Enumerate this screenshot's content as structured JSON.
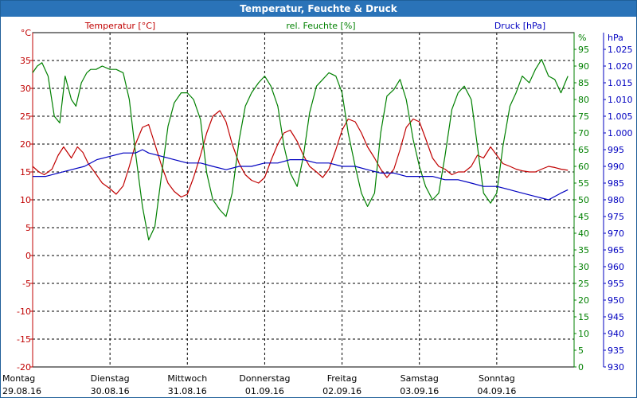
{
  "window": {
    "title": "Temperatur, Feuchte & Druck"
  },
  "colors": {
    "temperature": "#c00000",
    "humidity": "#008000",
    "pressure": "#0000c0",
    "title_bar": "#2a73b8"
  },
  "chart_data": {
    "type": "line",
    "title": "Temperatur, Feuchte & Druck",
    "grid": true,
    "x_labels": [
      {
        "day": "Montag",
        "date": "29.08.16"
      },
      {
        "day": "Dienstag",
        "date": "30.08.16"
      },
      {
        "day": "Mittwoch",
        "date": "31.08.16"
      },
      {
        "day": "Donnerstag",
        "date": "01.09.16"
      },
      {
        "day": "Freitag",
        "date": "02.09.16"
      },
      {
        "day": "Samstag",
        "date": "03.09.16"
      },
      {
        "day": "Sonntag",
        "date": "04.09.16"
      }
    ],
    "x_range_days": [
      0,
      7
    ],
    "axes": {
      "temperature": {
        "label": "Temperatur [°C]",
        "unit": "°C",
        "range": [
          -20,
          40
        ],
        "ticks": [
          "35",
          "30",
          "25",
          "20",
          "15",
          "10",
          "5",
          "0",
          "-5",
          "-10",
          "-15",
          "-20"
        ]
      },
      "humidity": {
        "label": "rel. Feuchte [%]",
        "unit": "%",
        "range": [
          0,
          100
        ],
        "ticks": [
          "95",
          "90",
          "85",
          "80",
          "75",
          "70",
          "65",
          "60",
          "55",
          "50",
          "45",
          "40",
          "35",
          "30",
          "25",
          "20",
          "15",
          "10",
          "5",
          "0"
        ]
      },
      "pressure": {
        "label": "Druck [hPa]",
        "unit": "hPa",
        "range": [
          930,
          1030
        ],
        "ticks": [
          "1.025",
          "1.020",
          "1.015",
          "1.010",
          "1.005",
          "1.000",
          "995",
          "990",
          "985",
          "980",
          "975",
          "970",
          "965",
          "960",
          "955",
          "950",
          "945",
          "940",
          "935",
          "930"
        ]
      }
    },
    "series": [
      {
        "name": "Temperatur [°C]",
        "axis": "temperature",
        "x": [
          0,
          0.08,
          0.15,
          0.25,
          0.33,
          0.4,
          0.5,
          0.58,
          0.65,
          0.72,
          0.8,
          0.9,
          1.0,
          1.08,
          1.17,
          1.25,
          1.33,
          1.42,
          1.5,
          1.58,
          1.67,
          1.75,
          1.83,
          1.92,
          2.0,
          2.08,
          2.17,
          2.25,
          2.33,
          2.42,
          2.5,
          2.58,
          2.67,
          2.75,
          2.83,
          2.92,
          3.0,
          3.08,
          3.17,
          3.25,
          3.33,
          3.42,
          3.5,
          3.58,
          3.67,
          3.75,
          3.83,
          3.92,
          4.0,
          4.08,
          4.17,
          4.25,
          4.33,
          4.42,
          4.5,
          4.58,
          4.67,
          4.75,
          4.83,
          4.92,
          5.0,
          5.08,
          5.17,
          5.25,
          5.33,
          5.42,
          5.5,
          5.58,
          5.67,
          5.75,
          5.83,
          5.92,
          6.0,
          6.08,
          6.17,
          6.25,
          6.33,
          6.42,
          6.5,
          6.58,
          6.67,
          6.75,
          6.83,
          6.92
        ],
        "values": [
          16.0,
          15.0,
          14.5,
          15.5,
          18.0,
          19.5,
          17.5,
          19.5,
          18.5,
          16.5,
          15.0,
          13.0,
          12.0,
          11.0,
          12.5,
          16.0,
          20.0,
          23.0,
          23.5,
          20.0,
          16.0,
          13.0,
          11.5,
          10.5,
          11.0,
          14.0,
          18.0,
          22.0,
          25.0,
          26.0,
          24.0,
          20.0,
          16.5,
          14.5,
          13.5,
          13.0,
          14.0,
          17.0,
          20.0,
          22.0,
          22.5,
          20.5,
          18.0,
          16.0,
          15.0,
          14.0,
          15.5,
          19.0,
          22.5,
          24.5,
          24.0,
          22.0,
          19.5,
          17.5,
          15.5,
          14.0,
          15.5,
          19.0,
          23.0,
          24.5,
          24.0,
          21.0,
          17.5,
          16.0,
          15.5,
          14.5,
          15.0,
          15.0,
          16.0,
          18.0,
          17.5,
          19.5,
          18.0,
          16.5,
          16.0,
          15.5,
          15.2,
          15.0,
          15.0,
          15.5,
          16.0,
          15.8,
          15.5,
          15.3
        ]
      },
      {
        "name": "rel. Feuchte [%]",
        "axis": "humidity",
        "x": [
          0,
          0.06,
          0.12,
          0.2,
          0.28,
          0.35,
          0.42,
          0.5,
          0.56,
          0.63,
          0.7,
          0.75,
          0.82,
          0.9,
          1.0,
          1.08,
          1.17,
          1.25,
          1.33,
          1.42,
          1.5,
          1.58,
          1.67,
          1.75,
          1.83,
          1.92,
          2.0,
          2.08,
          2.17,
          2.25,
          2.33,
          2.42,
          2.5,
          2.58,
          2.67,
          2.75,
          2.83,
          2.92,
          3.0,
          3.08,
          3.17,
          3.25,
          3.33,
          3.42,
          3.5,
          3.58,
          3.67,
          3.75,
          3.83,
          3.92,
          4.0,
          4.08,
          4.17,
          4.25,
          4.33,
          4.42,
          4.5,
          4.58,
          4.67,
          4.75,
          4.83,
          4.92,
          5.0,
          5.08,
          5.17,
          5.25,
          5.33,
          5.42,
          5.5,
          5.58,
          5.67,
          5.75,
          5.83,
          5.92,
          6.0,
          6.08,
          6.17,
          6.25,
          6.33,
          6.42,
          6.5,
          6.58,
          6.67,
          6.75,
          6.83,
          6.92
        ],
        "values": [
          88,
          90,
          91,
          87,
          75,
          73,
          87,
          80,
          78,
          85,
          88,
          89,
          89,
          90,
          89,
          89,
          88,
          80,
          64,
          48,
          38,
          42,
          58,
          72,
          79,
          82,
          82,
          80,
          74,
          58,
          50,
          47,
          45,
          52,
          68,
          78,
          82,
          85,
          87,
          84,
          78,
          66,
          58,
          54,
          63,
          76,
          84,
          86,
          88,
          87,
          82,
          70,
          60,
          52,
          48,
          52,
          70,
          81,
          83,
          86,
          80,
          68,
          60,
          54,
          50,
          52,
          63,
          77,
          82,
          84,
          80,
          66,
          52,
          49,
          52,
          66,
          78,
          82,
          87,
          85,
          89,
          92,
          87,
          86,
          82,
          87
        ]
      },
      {
        "name": "Druck [hPa]",
        "axis": "pressure",
        "x": [
          0,
          0.17,
          0.33,
          0.5,
          0.67,
          0.83,
          1.0,
          1.17,
          1.33,
          1.42,
          1.5,
          1.67,
          1.83,
          2.0,
          2.17,
          2.33,
          2.5,
          2.67,
          2.83,
          3.0,
          3.17,
          3.33,
          3.5,
          3.67,
          3.83,
          4.0,
          4.17,
          4.33,
          4.5,
          4.67,
          4.83,
          5.0,
          5.17,
          5.33,
          5.5,
          5.67,
          5.83,
          6.0,
          6.17,
          6.33,
          6.5,
          6.67,
          6.83,
          6.92
        ],
        "values": [
          987,
          987,
          988,
          989,
          990,
          992,
          993,
          994,
          994,
          995,
          994,
          993,
          992,
          991,
          991,
          990,
          989,
          990,
          990,
          991,
          991,
          992,
          992,
          991,
          991,
          990,
          990,
          989,
          988,
          988,
          987,
          987,
          987,
          986,
          986,
          985,
          984,
          984,
          983,
          982,
          981,
          980,
          982,
          983
        ]
      }
    ]
  }
}
